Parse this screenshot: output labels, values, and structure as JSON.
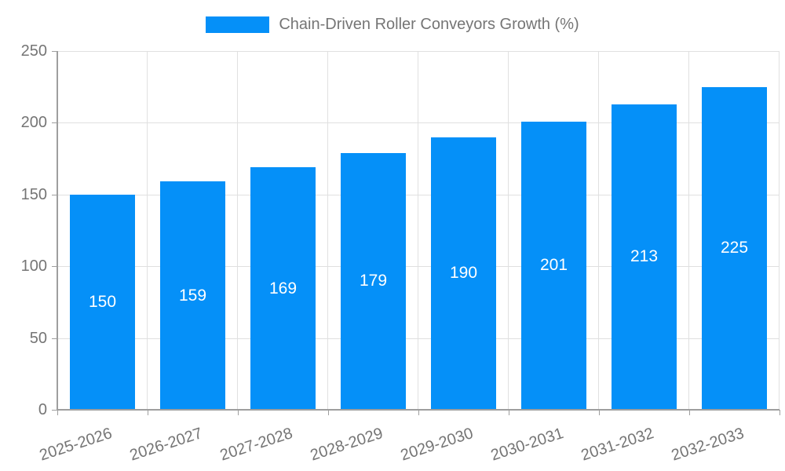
{
  "chart_data": {
    "type": "bar",
    "title": "",
    "legend": {
      "position": "top",
      "label": "Chain-Driven Roller Conveyors Growth (%)"
    },
    "categories": [
      "2025-2026",
      "2026-2027",
      "2027-2028",
      "2028-2029",
      "2029-2030",
      "2030-2031",
      "2031-2032",
      "2032-2033"
    ],
    "series": [
      {
        "name": "Chain-Driven Roller Conveyors Growth (%)",
        "values": [
          150,
          159,
          169,
          179,
          190,
          201,
          213,
          225
        ]
      }
    ],
    "value_labels": [
      "150",
      "159",
      "169",
      "179",
      "190",
      "201",
      "213",
      "225"
    ],
    "xlabel": "",
    "ylabel": "",
    "ylim": [
      0,
      250
    ],
    "yticks": [
      0,
      50,
      100,
      150,
      200,
      250
    ],
    "grid": "horizontal-and-vertical",
    "colors": {
      "bar": "#0590f8",
      "bar_value_text": "#ffffff",
      "axis_text": "#757575",
      "gridline": "#e0e0e0",
      "axis_line": "#9e9e9e",
      "background": "#ffffff"
    }
  }
}
